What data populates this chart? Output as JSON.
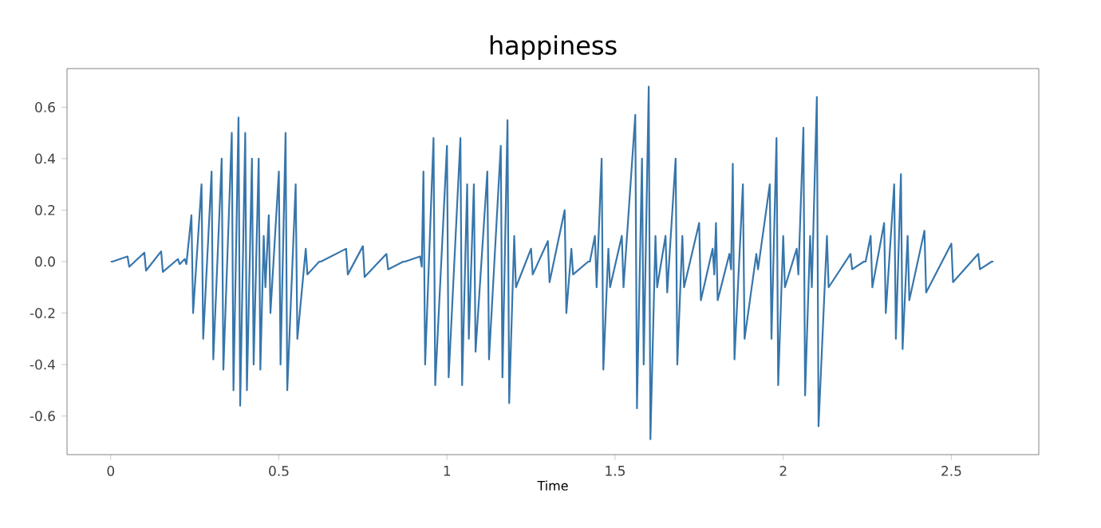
{
  "chart_data": {
    "type": "line",
    "title": "happiness",
    "xlabel": "Time",
    "xlim": [
      -0.13,
      2.76
    ],
    "ylim": [
      -0.75,
      0.75
    ],
    "xticks": [
      0,
      0.5,
      1,
      1.5,
      2,
      2.5
    ],
    "yticks": [
      -0.6,
      -0.4,
      -0.2,
      {
        "value": 0,
        "label": "0.0"
      },
      0.2,
      0.4,
      0.6
    ],
    "grid": false,
    "marker": "none",
    "line_style": "solid",
    "series": [
      {
        "color": "#3776ab",
        "x": [
          0.0,
          0.005,
          0.05,
          0.055,
          0.1,
          0.105,
          0.15,
          0.155,
          0.2,
          0.205,
          0.22,
          0.225,
          0.24,
          0.245,
          0.27,
          0.275,
          0.3,
          0.305,
          0.33,
          0.335,
          0.36,
          0.365,
          0.38,
          0.385,
          0.4,
          0.405,
          0.42,
          0.425,
          0.44,
          0.445,
          0.455,
          0.46,
          0.47,
          0.475,
          0.5,
          0.505,
          0.52,
          0.525,
          0.55,
          0.555,
          0.58,
          0.585,
          0.62,
          0.625,
          0.7,
          0.705,
          0.75,
          0.755,
          0.82,
          0.825,
          0.87,
          0.875,
          0.92,
          0.925,
          0.93,
          0.935,
          0.96,
          0.965,
          1.0,
          1.005,
          1.04,
          1.045,
          1.06,
          1.065,
          1.08,
          1.085,
          1.12,
          1.125,
          1.16,
          1.165,
          1.18,
          1.185,
          1.2,
          1.205,
          1.25,
          1.255,
          1.3,
          1.305,
          1.35,
          1.355,
          1.37,
          1.375,
          1.42,
          1.425,
          1.44,
          1.445,
          1.46,
          1.465,
          1.48,
          1.485,
          1.52,
          1.525,
          1.56,
          1.565,
          1.58,
          1.585,
          1.6,
          1.605,
          1.62,
          1.625,
          1.65,
          1.655,
          1.68,
          1.685,
          1.7,
          1.705,
          1.75,
          1.755,
          1.79,
          1.795,
          1.8,
          1.805,
          1.84,
          1.845,
          1.85,
          1.855,
          1.88,
          1.885,
          1.92,
          1.925,
          1.96,
          1.965,
          1.98,
          1.985,
          2.0,
          2.005,
          2.04,
          2.045,
          2.06,
          2.065,
          2.08,
          2.085,
          2.1,
          2.105,
          2.13,
          2.135,
          2.2,
          2.205,
          2.24,
          2.245,
          2.26,
          2.265,
          2.3,
          2.305,
          2.33,
          2.335,
          2.35,
          2.355,
          2.37,
          2.375,
          2.42,
          2.425,
          2.5,
          2.505,
          2.58,
          2.585,
          2.62,
          2.625
        ],
        "values": [
          0.0,
          0.0,
          0.02,
          -0.02,
          0.035,
          -0.035,
          0.04,
          -0.04,
          0.01,
          -0.01,
          0.01,
          -0.01,
          0.18,
          -0.2,
          0.3,
          -0.3,
          0.35,
          -0.38,
          0.4,
          -0.42,
          0.5,
          -0.5,
          0.56,
          -0.56,
          0.5,
          -0.5,
          0.4,
          -0.4,
          0.4,
          -0.42,
          0.1,
          -0.1,
          0.18,
          -0.2,
          0.35,
          -0.4,
          0.5,
          -0.5,
          0.3,
          -0.3,
          0.05,
          -0.05,
          0.0,
          0.0,
          0.05,
          -0.05,
          0.06,
          -0.06,
          0.03,
          -0.03,
          0.0,
          0.0,
          0.02,
          -0.02,
          0.35,
          -0.4,
          0.48,
          -0.48,
          0.45,
          -0.45,
          0.48,
          -0.48,
          0.3,
          -0.3,
          0.3,
          -0.35,
          0.35,
          -0.38,
          0.45,
          -0.45,
          0.55,
          -0.55,
          0.1,
          -0.1,
          0.05,
          -0.05,
          0.08,
          -0.08,
          0.2,
          -0.2,
          0.05,
          -0.05,
          0.0,
          0.0,
          0.1,
          -0.1,
          0.4,
          -0.42,
          0.05,
          -0.1,
          0.1,
          -0.1,
          0.57,
          -0.57,
          0.4,
          -0.4,
          0.68,
          -0.69,
          0.1,
          -0.1,
          0.1,
          -0.12,
          0.4,
          -0.4,
          0.1,
          -0.1,
          0.15,
          -0.15,
          0.05,
          -0.05,
          0.15,
          -0.15,
          0.03,
          -0.03,
          0.38,
          -0.38,
          0.3,
          -0.3,
          0.03,
          -0.03,
          0.3,
          -0.3,
          0.48,
          -0.48,
          0.1,
          -0.1,
          0.05,
          -0.05,
          0.52,
          -0.52,
          0.1,
          -0.1,
          0.64,
          -0.64,
          0.1,
          -0.1,
          0.03,
          -0.03,
          0.0,
          0.0,
          0.1,
          -0.1,
          0.15,
          -0.2,
          0.3,
          -0.3,
          0.34,
          -0.34,
          0.1,
          -0.15,
          0.12,
          -0.12,
          0.07,
          -0.08,
          0.03,
          -0.03,
          0.0,
          0.0
        ]
      }
    ]
  }
}
